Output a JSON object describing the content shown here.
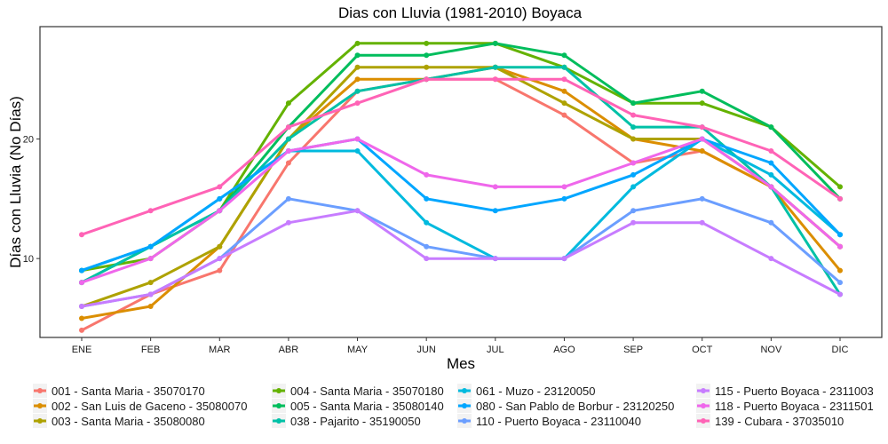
{
  "chart_data": {
    "type": "line",
    "title": "Dias con Lluvia (1981-2010)  Boyaca",
    "xlabel": "Mes",
    "ylabel": "Días con Lluvia (No Días)",
    "categories": [
      "ENE",
      "FEB",
      "MAR",
      "ABR",
      "MAY",
      "JUN",
      "JUL",
      "AGO",
      "SEP",
      "OCT",
      "NOV",
      "DIC"
    ],
    "ylim": [
      3.4,
      29.4
    ],
    "yticks": [
      10,
      20
    ],
    "grid": false,
    "legend_position": "bottom",
    "series": [
      {
        "name": "001 - Santa Maria - 35070170",
        "color": "#F8766D",
        "values": [
          4,
          7,
          9,
          18,
          24,
          25,
          25,
          22,
          18,
          19,
          16,
          11
        ]
      },
      {
        "name": "002 - San Luis de Gaceno - 35080070",
        "color": "#DB8E00",
        "values": [
          5,
          6,
          11,
          20,
          25,
          25,
          26,
          24,
          20,
          19,
          16,
          9
        ]
      },
      {
        "name": "003 - Santa Maria - 35080080",
        "color": "#AEA200",
        "values": [
          6,
          8,
          11,
          20,
          26,
          26,
          26,
          23,
          20,
          20,
          16,
          11
        ]
      },
      {
        "name": "004 - Santa Maria - 35070180",
        "color": "#64B200",
        "values": [
          9,
          10,
          14,
          23,
          28,
          28,
          28,
          26,
          23,
          23,
          21,
          16
        ]
      },
      {
        "name": "005 - Santa Maria - 35080140",
        "color": "#00BD5C",
        "values": [
          8,
          11,
          14,
          21,
          27,
          27,
          28,
          27,
          23,
          24,
          21,
          15
        ]
      },
      {
        "name": "038 - Pajarito - 35190050",
        "color": "#00C1A7",
        "values": [
          8,
          11,
          14,
          20,
          24,
          25,
          26,
          26,
          21,
          21,
          16,
          7
        ]
      },
      {
        "name": "061 - Muzo - 23120050",
        "color": "#00BADE",
        "values": [
          9,
          11,
          15,
          19,
          19,
          13,
          10,
          10,
          16,
          20,
          17,
          12
        ]
      },
      {
        "name": "080 - San Pablo de Borbur - 23120250",
        "color": "#00A6FF",
        "values": [
          9,
          11,
          15,
          19,
          20,
          15,
          14,
          15,
          17,
          20,
          18,
          12
        ]
      },
      {
        "name": "110 - Puerto Boyaca - 23110040",
        "color": "#6B9EFF",
        "values": [
          6,
          7,
          10,
          15,
          14,
          11,
          10,
          10,
          14,
          15,
          13,
          8
        ]
      },
      {
        "name": "115 - Puerto Boyaca - 2311003",
        "color": "#C77CFF",
        "values": [
          6,
          7,
          10,
          13,
          14,
          10,
          10,
          10,
          13,
          13,
          10,
          7
        ]
      },
      {
        "name": "118 - Puerto Boyaca - 2311501",
        "color": "#EF67EB",
        "values": [
          8,
          10,
          14,
          19,
          20,
          17,
          16,
          16,
          18,
          20,
          16,
          11
        ]
      },
      {
        "name": "139 - Cubara - 37035010",
        "color": "#FF63B6",
        "values": [
          12,
          14,
          16,
          21,
          23,
          25,
          25,
          25,
          22,
          21,
          19,
          15
        ]
      }
    ]
  }
}
